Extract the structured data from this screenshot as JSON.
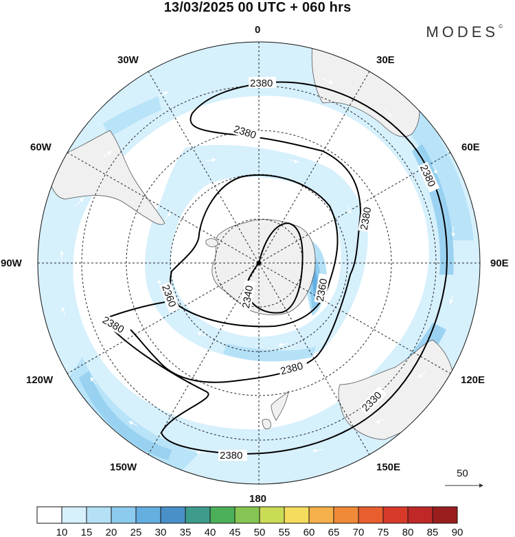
{
  "title": "13/03/2025  00 UTC  + 060 hrs",
  "brand": "MODES",
  "brand_mark": "©",
  "longitude_labels": {
    "lon_0": "0",
    "lon_30e": "30E",
    "lon_60e": "60E",
    "lon_90e": "90E",
    "lon_120e": "120E",
    "lon_150e": "150E",
    "lon_180": "180",
    "lon_150w": "150W",
    "lon_120w": "120W",
    "lon_90w": "90W",
    "lon_60w": "60W",
    "lon_30w": "30W"
  },
  "contour_labels": [
    "2380",
    "2380",
    "2380",
    "2380",
    "2360",
    "2360",
    "2340",
    "2380",
    "2380",
    "2380",
    "2330"
  ],
  "vector_reference": "50",
  "colorbar": {
    "labels": [
      "10",
      "15",
      "20",
      "25",
      "30",
      "35",
      "40",
      "45",
      "50",
      "55",
      "60",
      "65",
      "70",
      "75",
      "80",
      "85",
      "90"
    ],
    "colors": [
      "#ffffff",
      "#d6f0fc",
      "#b5e1f7",
      "#8ccaee",
      "#64aee0",
      "#4a90c8",
      "#3d9c8c",
      "#4cb05a",
      "#86c553",
      "#cadc55",
      "#f6dc5c",
      "#f4b04a",
      "#f08a38",
      "#e85e2e",
      "#d83a2a",
      "#c02828",
      "#9a1e1e"
    ]
  },
  "colors": {
    "land": "#f0f0f0",
    "coast": "#555555",
    "contour": "#000000",
    "wind_light": "#d6f0fc",
    "wind_mid": "#b5e1f7",
    "wind_strong": "#8ccaee",
    "wind_max": "#64aee0"
  }
}
